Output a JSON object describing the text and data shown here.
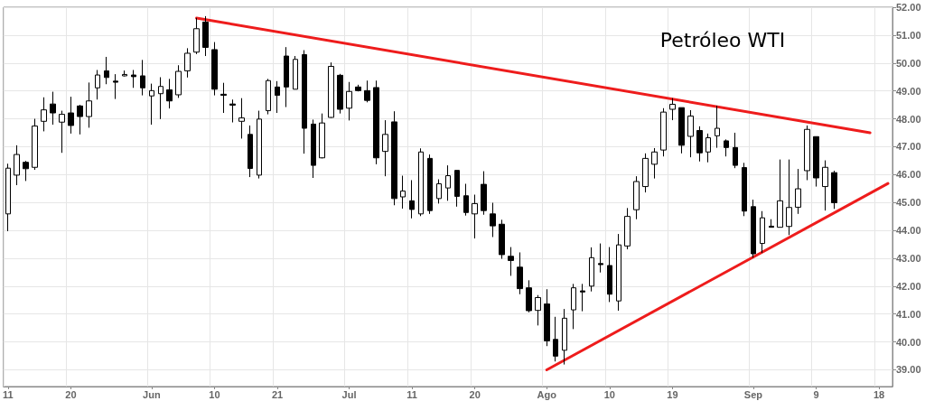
{
  "chart_data": {
    "type": "candlestick",
    "title": "Petróleo WTI",
    "categories": [
      "11",
      null,
      null,
      null,
      null,
      null,
      null,
      "20",
      null,
      null,
      null,
      null,
      null,
      null,
      null,
      null,
      "Jun",
      null,
      null,
      null,
      null,
      null,
      null,
      "10",
      null,
      null,
      null,
      null,
      null,
      null,
      "21",
      null,
      null,
      null,
      null,
      null,
      null,
      null,
      "Jul",
      null,
      null,
      null,
      null,
      null,
      null,
      "11",
      null,
      null,
      null,
      null,
      null,
      null,
      "20",
      null,
      null,
      null,
      null,
      null,
      null,
      null,
      "Ago",
      null,
      null,
      null,
      null,
      null,
      null,
      "10",
      null,
      null,
      null,
      null,
      null,
      null,
      "19",
      null,
      null,
      null,
      null,
      null,
      null,
      null,
      null,
      "Sep",
      null,
      null,
      null,
      null,
      null,
      null,
      "9",
      null,
      null,
      null,
      null,
      null,
      null,
      "18",
      null
    ],
    "ohlc": [
      [
        44.59,
        46.39,
        43.97,
        46.23
      ],
      [
        45.98,
        47.05,
        45.62,
        46.72
      ],
      [
        46.44,
        46.49,
        45.77,
        46.21
      ],
      [
        46.26,
        48.0,
        46.17,
        47.74
      ],
      [
        47.91,
        48.77,
        47.55,
        48.32
      ],
      [
        48.53,
        48.97,
        47.79,
        48.21
      ],
      [
        47.88,
        48.29,
        46.78,
        48.16
      ],
      [
        48.21,
        48.79,
        47.47,
        47.76
      ],
      [
        48.46,
        48.5,
        47.44,
        48.08
      ],
      [
        48.08,
        49.3,
        47.68,
        48.64
      ],
      [
        49.11,
        49.75,
        48.69,
        49.57
      ],
      [
        49.72,
        50.22,
        49.24,
        49.48
      ],
      [
        49.35,
        49.6,
        48.71,
        49.31
      ],
      [
        49.54,
        49.73,
        49.52,
        49.59
      ],
      [
        49.57,
        49.75,
        49.11,
        49.51
      ],
      [
        49.54,
        50.11,
        48.84,
        49.11
      ],
      [
        48.82,
        49.26,
        47.79,
        49.01
      ],
      [
        48.9,
        49.49,
        47.99,
        49.16
      ],
      [
        49.04,
        49.43,
        48.37,
        48.64
      ],
      [
        48.86,
        49.92,
        48.75,
        49.7
      ],
      [
        49.72,
        50.53,
        49.48,
        50.35
      ],
      [
        50.39,
        51.62,
        50.32,
        51.23
      ],
      [
        51.47,
        51.68,
        50.25,
        50.56
      ],
      [
        50.48,
        50.75,
        48.84,
        49.06
      ],
      [
        48.88,
        49.29,
        48.21,
        48.84
      ],
      [
        48.53,
        48.69,
        47.87,
        48.49
      ],
      [
        47.91,
        48.74,
        47.29,
        48.03
      ],
      [
        47.44,
        47.76,
        45.91,
        46.22
      ],
      [
        45.98,
        48.29,
        45.86,
        47.99
      ],
      [
        48.29,
        49.43,
        48.16,
        49.37
      ],
      [
        49.14,
        49.35,
        48.21,
        48.84
      ],
      [
        50.25,
        50.57,
        48.42,
        49.14
      ],
      [
        49.06,
        50.25,
        49.06,
        50.13
      ],
      [
        50.3,
        50.46,
        46.75,
        47.66
      ],
      [
        47.81,
        47.97,
        45.88,
        46.33
      ],
      [
        46.6,
        48.19,
        46.58,
        47.85
      ],
      [
        48.05,
        50.02,
        48.03,
        49.88
      ],
      [
        49.56,
        49.61,
        48.19,
        48.34
      ],
      [
        48.38,
        49.32,
        47.94,
        48.98
      ],
      [
        49.14,
        49.22,
        48.98,
        49.01
      ],
      [
        49.01,
        49.37,
        48.59,
        48.66
      ],
      [
        49.12,
        49.37,
        46.37,
        46.6
      ],
      [
        46.83,
        47.95,
        45.94,
        47.44
      ],
      [
        47.89,
        48.27,
        44.9,
        45.14
      ],
      [
        45.2,
        45.96,
        44.78,
        45.41
      ],
      [
        45.06,
        45.8,
        44.43,
        44.75
      ],
      [
        44.59,
        46.94,
        44.51,
        46.81
      ],
      [
        46.58,
        46.72,
        44.59,
        44.71
      ],
      [
        45.14,
        45.83,
        44.96,
        45.67
      ],
      [
        45.52,
        46.33,
        45.06,
        45.96
      ],
      [
        46.15,
        46.15,
        44.85,
        45.22
      ],
      [
        45.24,
        45.67,
        44.53,
        44.64
      ],
      [
        44.59,
        45.28,
        43.71,
        44.96
      ],
      [
        45.65,
        46.12,
        44.56,
        44.71
      ],
      [
        44.59,
        44.99,
        43.76,
        44.16
      ],
      [
        44.22,
        44.38,
        42.98,
        43.13
      ],
      [
        43.07,
        43.4,
        42.37,
        42.92
      ],
      [
        42.68,
        43.21,
        41.71,
        41.91
      ],
      [
        41.94,
        42.21,
        41.06,
        41.12
      ],
      [
        41.13,
        41.68,
        40.59,
        41.59
      ],
      [
        41.36,
        41.89,
        39.85,
        40.04
      ],
      [
        40.09,
        40.9,
        39.3,
        39.49
      ],
      [
        39.7,
        41.18,
        39.19,
        40.85
      ],
      [
        41.15,
        42.08,
        40.46,
        41.94
      ],
      [
        41.83,
        42.08,
        41.1,
        41.79
      ],
      [
        42.0,
        43.39,
        41.81,
        43.02
      ],
      [
        42.81,
        43.53,
        42.49,
        42.77
      ],
      [
        42.74,
        43.4,
        41.43,
        41.71
      ],
      [
        41.47,
        43.87,
        41.12,
        43.48
      ],
      [
        43.44,
        44.8,
        43.32,
        44.5
      ],
      [
        44.74,
        45.94,
        44.4,
        45.75
      ],
      [
        45.57,
        46.76,
        45.36,
        46.58
      ],
      [
        46.37,
        46.95,
        45.86,
        46.81
      ],
      [
        46.88,
        48.38,
        46.65,
        48.24
      ],
      [
        48.34,
        48.74,
        47.95,
        48.52
      ],
      [
        48.4,
        48.4,
        46.76,
        47.05
      ],
      [
        47.37,
        48.31,
        46.62,
        48.1
      ],
      [
        47.58,
        47.73,
        46.47,
        46.78
      ],
      [
        46.81,
        47.47,
        46.44,
        47.32
      ],
      [
        47.39,
        48.47,
        46.96,
        47.66
      ],
      [
        47.21,
        47.26,
        46.65,
        46.97
      ],
      [
        46.97,
        47.5,
        46.23,
        46.33
      ],
      [
        46.25,
        46.42,
        44.51,
        44.69
      ],
      [
        44.85,
        45.1,
        43.02,
        43.16
      ],
      [
        43.53,
        44.69,
        43.19,
        44.45
      ],
      [
        44.15,
        44.4,
        44.11,
        44.11
      ],
      [
        44.11,
        46.54,
        44.11,
        45.06
      ],
      [
        44.14,
        46.54,
        43.83,
        44.82
      ],
      [
        44.83,
        46.2,
        44.59,
        45.49
      ],
      [
        46.14,
        47.76,
        45.8,
        47.62
      ],
      [
        47.36,
        47.36,
        45.57,
        45.88
      ],
      [
        45.57,
        46.51,
        44.71,
        46.26
      ],
      [
        46.07,
        46.14,
        44.77,
        44.99
      ],
      null,
      null,
      null,
      null,
      null,
      null
    ],
    "color": "#000000",
    "series": [
      {
        "type": "line",
        "color": "#ee1c1c",
        "values": [
          null,
          null,
          null,
          null,
          null,
          null,
          null,
          null,
          null,
          null,
          null,
          null,
          null,
          null,
          null,
          null,
          null,
          null,
          null,
          null,
          null,
          51.61,
          null,
          null,
          null,
          null,
          null,
          null,
          null,
          null,
          null,
          null,
          null,
          null,
          null,
          null,
          null,
          null,
          null,
          null,
          null,
          null,
          null,
          null,
          null,
          null,
          null,
          null,
          null,
          null,
          null,
          null,
          null,
          null,
          null,
          null,
          null,
          null,
          null,
          null,
          null,
          null,
          null,
          null,
          null,
          null,
          null,
          null,
          null,
          null,
          null,
          null,
          null,
          null,
          null,
          null,
          null,
          null,
          null,
          null,
          null,
          null,
          null,
          null,
          null,
          null,
          null,
          null,
          null,
          null,
          null,
          null,
          null,
          null,
          null,
          null,
          47.5,
          null,
          null
        ]
      },
      {
        "type": "line",
        "color": "#ee1c1c",
        "values": [
          null,
          null,
          null,
          null,
          null,
          null,
          null,
          null,
          null,
          null,
          null,
          null,
          null,
          null,
          null,
          null,
          null,
          null,
          null,
          null,
          null,
          null,
          null,
          null,
          null,
          null,
          null,
          null,
          null,
          null,
          null,
          null,
          null,
          null,
          null,
          null,
          null,
          null,
          null,
          null,
          null,
          null,
          null,
          null,
          null,
          null,
          null,
          null,
          null,
          null,
          null,
          null,
          null,
          null,
          null,
          null,
          null,
          null,
          null,
          null,
          39.0,
          null,
          null,
          null,
          null,
          null,
          null,
          null,
          null,
          null,
          null,
          null,
          null,
          null,
          null,
          null,
          null,
          null,
          null,
          null,
          null,
          null,
          null,
          null,
          null,
          null,
          null,
          null,
          null,
          null,
          null,
          null,
          null,
          null,
          null,
          null,
          null,
          null,
          45.68
        ]
      }
    ],
    "marker": "none",
    "line_style": "solid",
    "grid": true,
    "ylim": [
      38.4,
      52
    ],
    "yticks": [
      {
        "value": 39,
        "label": "39.00"
      },
      {
        "value": 40,
        "label": "40.00"
      },
      {
        "value": 41,
        "label": "41.00"
      },
      {
        "value": 42,
        "label": "42.00"
      },
      {
        "value": 43,
        "label": "43.00"
      },
      {
        "value": 44,
        "label": "44.00"
      },
      {
        "value": 45,
        "label": "45.00"
      },
      {
        "value": 46,
        "label": "46.00"
      },
      {
        "value": 47,
        "label": "47.00"
      },
      {
        "value": 48,
        "label": "48.00"
      },
      {
        "value": 49,
        "label": "49.00"
      },
      {
        "value": 50,
        "label": "50.00"
      },
      {
        "value": 51,
        "label": "51.00"
      },
      {
        "value": 52,
        "label": "52.00"
      }
    ]
  }
}
